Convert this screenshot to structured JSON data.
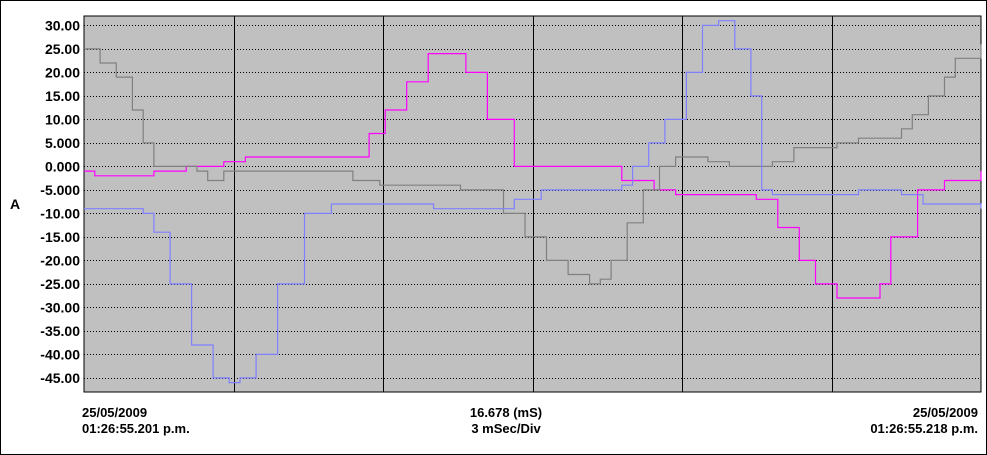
{
  "chart_data": {
    "type": "line",
    "ylabel": "A",
    "xlim_ms": [
      0,
      16.678
    ],
    "ylim": [
      -48,
      32
    ],
    "y_ticks": [
      "30.00",
      "25.00",
      "20.00",
      "15.00",
      "10.00",
      "5.000",
      "0.000",
      "-5.000",
      "-10.00",
      "-15.00",
      "-20.00",
      "-25.00",
      "-30.00",
      "-35.00",
      "-40.00",
      "-45.00"
    ],
    "y_tick_values": [
      30,
      25,
      20,
      15,
      10,
      5,
      0,
      -5,
      -10,
      -15,
      -20,
      -25,
      -30,
      -35,
      -40,
      -45
    ],
    "x_divisions": 6,
    "grid": true,
    "colors": {
      "background": "#c0c0c0",
      "major_grid": "#000000",
      "minor_grid": "#000000"
    },
    "series": [
      {
        "color": "#ff00ff",
        "x": [
          0,
          0.2,
          1.3,
          1.9,
          2.2,
          2.6,
          3.0,
          3.4,
          3.9,
          4.3,
          4.8,
          5.3,
          5.6,
          6.0,
          6.4,
          6.8,
          7.1,
          7.5,
          8.0,
          9.0,
          10.0,
          10.6,
          11.0,
          11.6,
          12.1,
          12.5,
          12.9,
          13.3,
          13.6,
          14.0,
          14.4,
          14.8,
          15.0,
          15.5,
          16.0,
          16.678
        ],
        "y": [
          -1,
          -2,
          -1,
          0,
          0,
          1,
          2,
          2,
          2,
          2,
          2,
          7,
          12,
          18,
          24,
          24,
          20,
          10,
          0,
          0,
          -3,
          -5,
          -6,
          -6,
          -6,
          -7,
          -13,
          -20,
          -25,
          -28,
          -28,
          -25,
          -15,
          -5,
          -3,
          -1
        ]
      },
      {
        "color": "#808080",
        "x": [
          0,
          0.3,
          0.6,
          0.9,
          1.1,
          1.3,
          1.6,
          1.9,
          2.1,
          2.3,
          2.6,
          3.0,
          3.5,
          4.0,
          4.6,
          5.0,
          5.5,
          6.0,
          7.0,
          7.5,
          7.8,
          8.2,
          8.6,
          9.0,
          9.4,
          9.6,
          9.8,
          10.1,
          10.4,
          10.7,
          11.0,
          11.3,
          11.6,
          12.0,
          12.4,
          12.8,
          13.2,
          13.6,
          14.0,
          14.4,
          14.8,
          15.2,
          15.4,
          15.7,
          16.0,
          16.2,
          16.678
        ],
        "y": [
          25,
          22,
          19,
          12,
          5,
          0,
          0,
          0,
          -1,
          -3,
          -1,
          -1,
          -1,
          -1,
          -1,
          -3,
          -4,
          -4,
          -5,
          -5,
          -10,
          -15,
          -20,
          -23,
          -25,
          -24,
          -20,
          -12,
          -5,
          0,
          2,
          2,
          1,
          0,
          0,
          1,
          4,
          4,
          5,
          6,
          6,
          8,
          11,
          15,
          19,
          23,
          26
        ]
      },
      {
        "color": "#8080ff",
        "x": [
          0,
          0.5,
          1.1,
          1.3,
          1.6,
          2.0,
          2.4,
          2.7,
          2.9,
          3.2,
          3.6,
          4.1,
          4.6,
          5.2,
          5.6,
          6.0,
          6.5,
          7.0,
          7.5,
          8.0,
          8.5,
          8.8,
          9.2,
          9.6,
          10.0,
          10.2,
          10.5,
          10.8,
          11.2,
          11.5,
          11.8,
          12.1,
          12.4,
          12.6,
          12.8,
          13.2,
          13.6,
          14.0,
          14.4,
          14.8,
          15.2,
          15.6,
          16.0,
          16.678
        ],
        "y": [
          -9,
          -9,
          -10,
          -14,
          -25,
          -38,
          -45,
          -46,
          -45,
          -40,
          -25,
          -10,
          -8,
          -8,
          -8,
          -8,
          -9,
          -9,
          -9,
          -7,
          -5,
          -5,
          -5,
          -5,
          -4,
          0,
          5,
          10,
          20,
          30,
          31,
          25,
          15,
          -5,
          -6,
          -6,
          -6,
          -6,
          -5,
          -5,
          -6,
          -8,
          -8,
          -9
        ]
      }
    ]
  },
  "footer": {
    "left_date": "25/05/2009",
    "left_time": "01:26:55.201 p.m.",
    "mid_value": "16.678 (mS)",
    "mid_div": "3 mSec/Div",
    "right_date": "25/05/2009",
    "right_time": "01:26:55.218 p.m."
  }
}
